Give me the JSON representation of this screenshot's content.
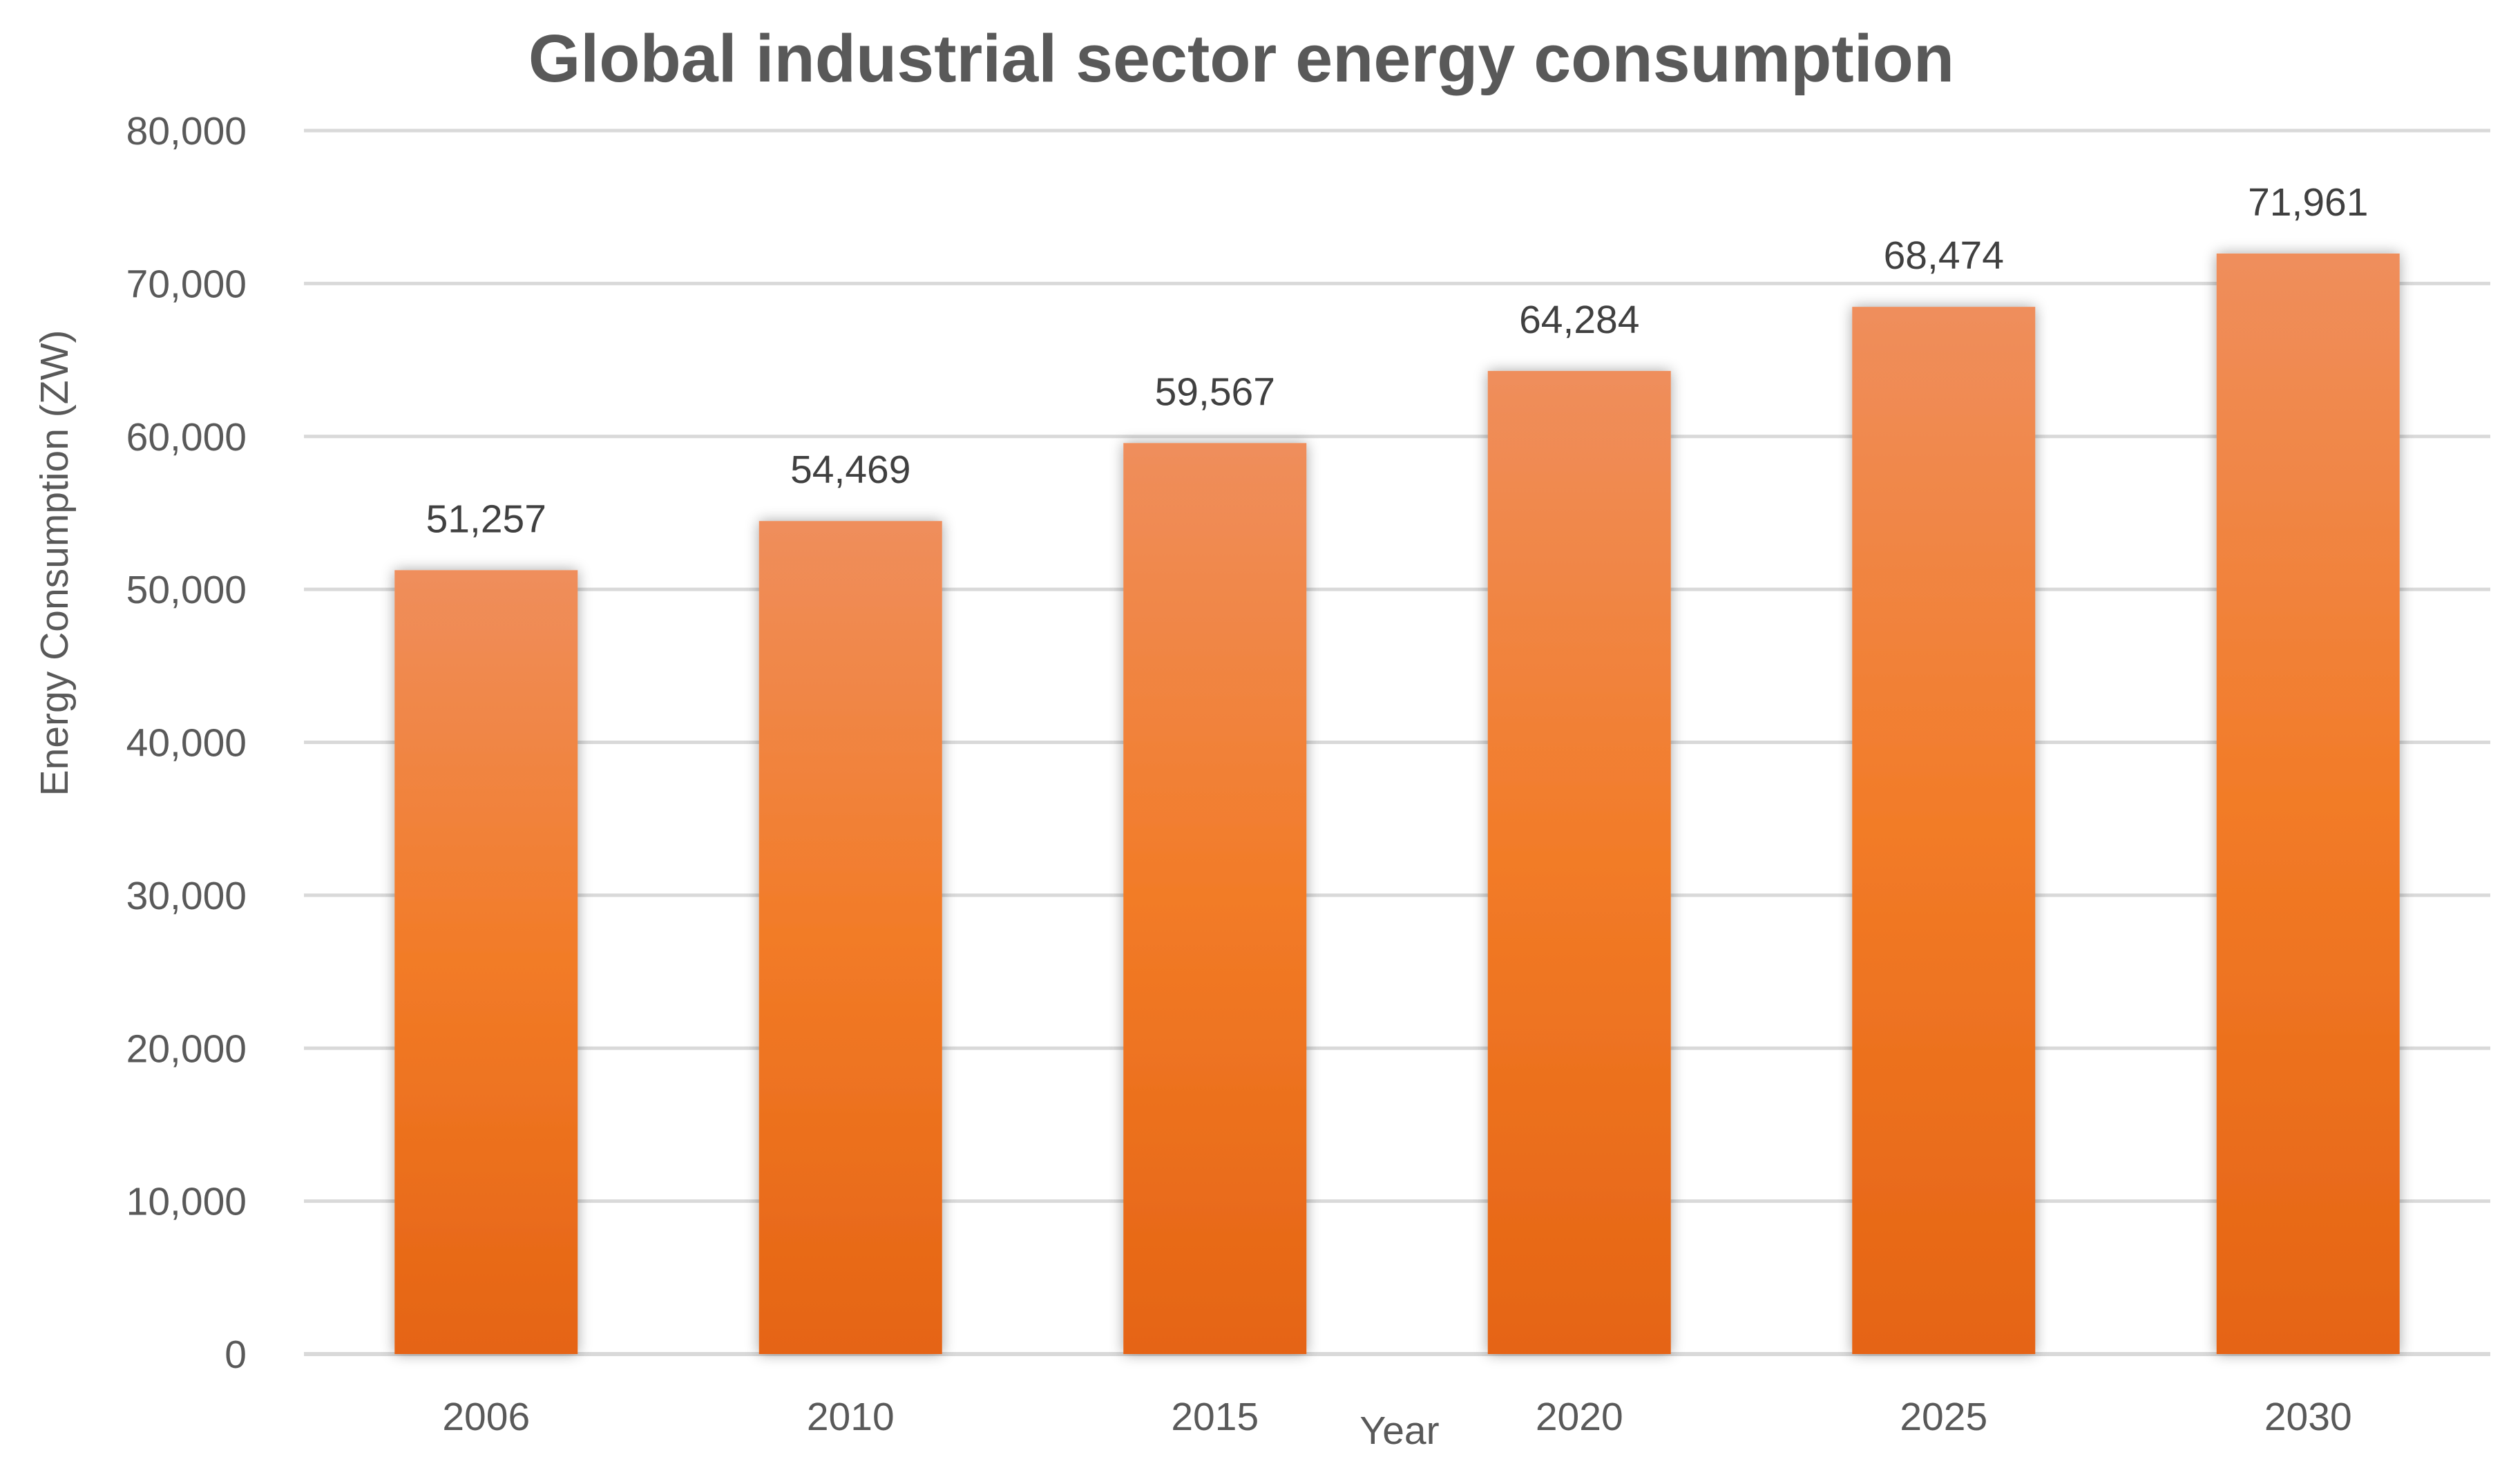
{
  "chart_data": {
    "type": "bar",
    "title": "Global industrial sector energy consumption",
    "xlabel": "Year",
    "ylabel": "Energy Consumption (ZW)",
    "categories": [
      "2006",
      "2010",
      "2015",
      "2020",
      "2025",
      "2030"
    ],
    "values": [
      51257,
      54469,
      59567,
      64284,
      68474,
      71961
    ],
    "data_labels": [
      "51,257",
      "54,469",
      "59,567",
      "64,284",
      "68,474",
      "71,961"
    ],
    "ylim": [
      0,
      80000
    ],
    "yticks": [
      0,
      10000,
      20000,
      30000,
      40000,
      50000,
      60000,
      70000,
      80000
    ],
    "ytick_labels": [
      "0",
      "10,000",
      "20,000",
      "30,000",
      "40,000",
      "50,000",
      "60,000",
      "70,000",
      "80,000"
    ],
    "grid": true,
    "legend": false,
    "colors": {
      "bar_top": "#EF8E5C",
      "bar_mid": "#F27B27",
      "bar_bottom": "#E56414",
      "gridline": "#D9D9D9",
      "axis_text": "#595959",
      "title_text": "#595959",
      "label_text": "#404040"
    }
  }
}
